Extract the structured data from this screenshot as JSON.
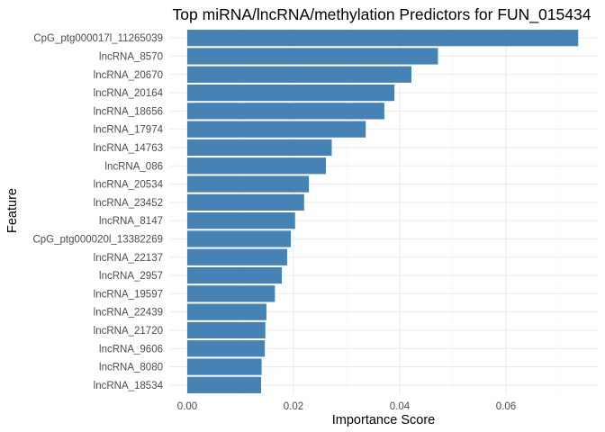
{
  "chart_data": {
    "type": "bar",
    "orientation": "horizontal",
    "title": "Top miRNA/lncRNA/methylation Predictors for FUN_015434",
    "xlabel": "Importance Score",
    "ylabel": "Feature",
    "xlim": [
      0,
      0.075
    ],
    "xticks": [
      0.0,
      0.02,
      0.04,
      0.06
    ],
    "xtick_labels": [
      "0.00",
      "0.02",
      "0.04",
      "0.06"
    ],
    "grid": true,
    "bar_color": "#4682b4",
    "categories": [
      "CpG_ptg000017l_11265039",
      "lncRNA_8570",
      "lncRNA_20670",
      "lncRNA_20164",
      "lncRNA_18656",
      "lncRNA_17974",
      "lncRNA_14763",
      "lncRNA_086",
      "lncRNA_20534",
      "lncRNA_23452",
      "lncRNA_8147",
      "CpG_ptg000020l_13382269",
      "lncRNA_22137",
      "lncRNA_2957",
      "lncRNA_19597",
      "lncRNA_22439",
      "lncRNA_21720",
      "lncRNA_9606",
      "lncRNA_8080",
      "lncRNA_18534"
    ],
    "values": [
      0.0736,
      0.0472,
      0.0422,
      0.039,
      0.0371,
      0.0336,
      0.0272,
      0.0261,
      0.0229,
      0.022,
      0.0203,
      0.0195,
      0.0188,
      0.0178,
      0.0165,
      0.0149,
      0.0147,
      0.0146,
      0.014,
      0.0139
    ]
  }
}
